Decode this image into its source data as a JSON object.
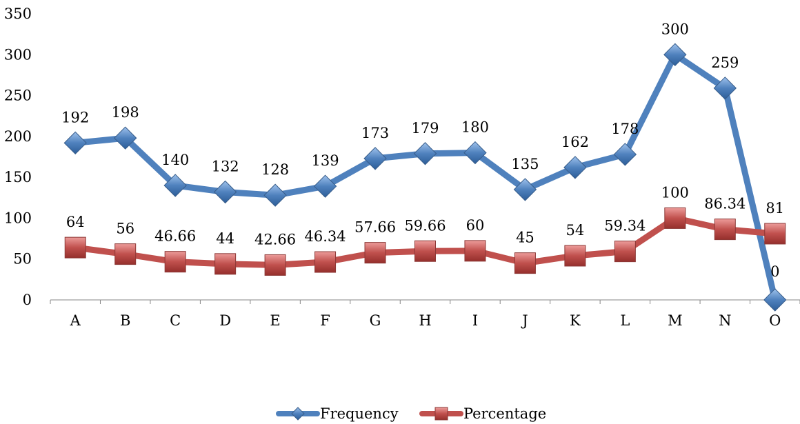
{
  "chart_data": {
    "type": "line",
    "categories": [
      "A",
      "B",
      "C",
      "D",
      "E",
      "F",
      "G",
      "H",
      "I",
      "J",
      "K",
      "L",
      "M",
      "N",
      "O"
    ],
    "series": [
      {
        "name": "Frequency",
        "values": [
          192,
          198,
          140,
          132,
          128,
          139,
          173,
          179,
          180,
          135,
          162,
          178,
          300,
          259,
          0
        ],
        "labels": [
          "192",
          "198",
          "140",
          "132",
          "128",
          "139",
          "173",
          "179",
          "180",
          "135",
          "162",
          "178",
          "300",
          "259",
          "0"
        ],
        "color": "#4f81bd",
        "marker": "diamond"
      },
      {
        "name": "Percentage",
        "values": [
          64,
          56,
          46.66,
          44,
          42.66,
          46.34,
          57.66,
          59.66,
          60,
          45,
          54,
          59.34,
          100,
          86.34,
          81
        ],
        "labels": [
          "64",
          "56",
          "46.66",
          "44",
          "42.66",
          "46.34",
          "57.66",
          "59.66",
          "60",
          "45",
          "54",
          "59.34",
          "100",
          "86.34",
          "81"
        ],
        "color": "#c0504d",
        "marker": "square"
      }
    ],
    "ylim": [
      0,
      350
    ],
    "yticks": [
      0,
      50,
      100,
      150,
      200,
      250,
      300,
      350
    ],
    "ytick_labels": [
      "0",
      "50",
      "100",
      "150",
      "200",
      "250",
      "300",
      "350"
    ],
    "grid": false,
    "legend": "bottom"
  }
}
